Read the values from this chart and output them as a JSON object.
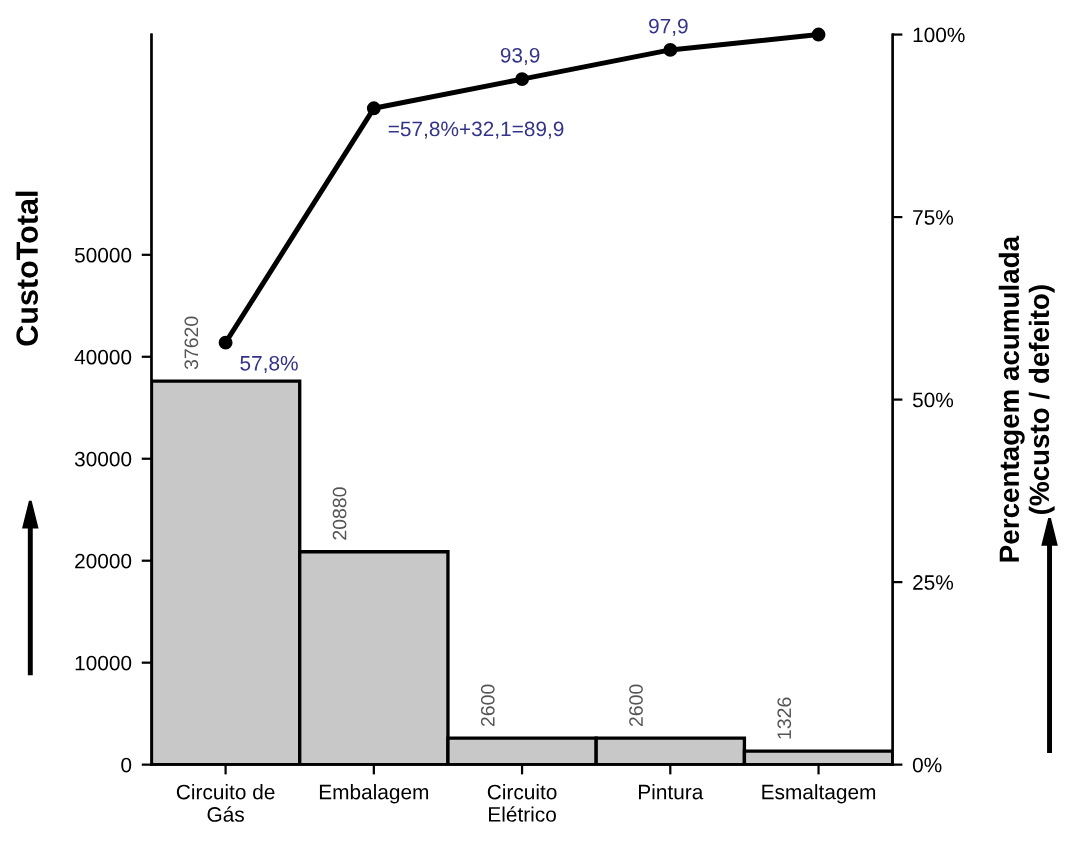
{
  "chart_data": {
    "type": "bar",
    "categories": [
      "Circuito de\nGás",
      "Embalagem",
      "Circuito\nElétrico",
      "Pintura",
      "Esmaltagem"
    ],
    "series": [
      {
        "color": "#c8c8c8",
        "values": [
          37620,
          20880,
          2600,
          2600,
          1326
        ],
        "value_labels": [
          "37620",
          "20880",
          "2600",
          "2600",
          "1326"
        ]
      },
      {
        "type": "line",
        "axis": "y2",
        "color": "#000000",
        "values": [
          57.8,
          89.9,
          93.9,
          97.9,
          100
        ],
        "value_labels": [
          "57,8%",
          "=57,8%+32,1=89,9",
          "93,9",
          "97,9",
          null
        ]
      }
    ],
    "marker": "circle",
    "line_style": "solid",
    "grid": false,
    "legend": false,
    "ylabel": "CustoTotal",
    "y2label": "Percentagem acumulada\n(%custo / defeito)",
    "ylim": [
      0,
      71600
    ],
    "yticks": [
      0,
      10000,
      20000,
      30000,
      40000,
      50000
    ],
    "y2lim": [
      0,
      100
    ],
    "y2ticks": [
      {
        "value": 0,
        "label": "0%"
      },
      {
        "value": 25,
        "label": "25%"
      },
      {
        "value": 50,
        "label": "50%"
      },
      {
        "value": 75,
        "label": "75%"
      },
      {
        "value": 100,
        "label": "100%"
      }
    ]
  }
}
